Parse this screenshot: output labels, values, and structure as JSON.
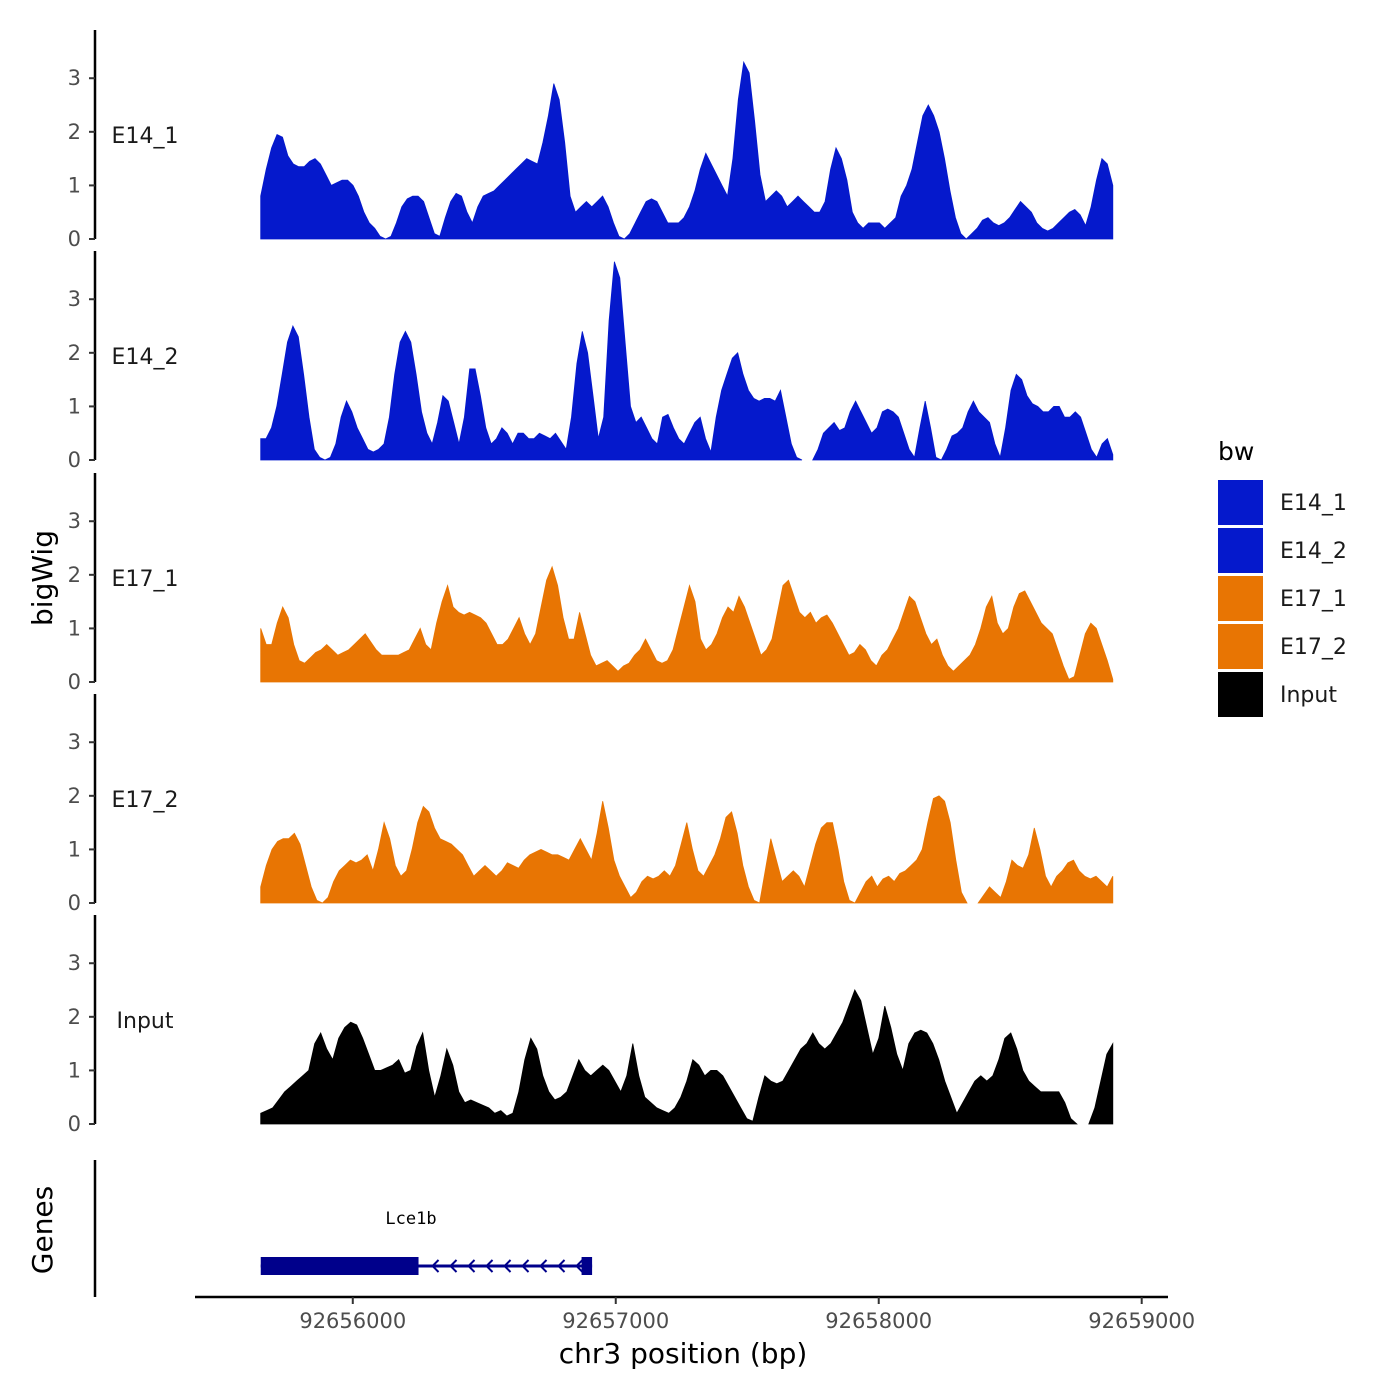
{
  "chart_data": {
    "type": "area",
    "y_axis_title": "bigWig",
    "x_axis_title": "chr3 position (bp)",
    "ylim": [
      0,
      3.9
    ],
    "y_ticks": [
      "0",
      "1",
      "2",
      "3"
    ],
    "x_ticks": [
      {
        "value": 92656000,
        "label": "92656000"
      },
      {
        "value": 92657000,
        "label": "92657000"
      },
      {
        "value": 92658000,
        "label": "92658000"
      },
      {
        "value": 92659000,
        "label": "92659000"
      }
    ],
    "xlim": [
      92655400,
      92659100
    ],
    "data_range": [
      92655650,
      92658890
    ],
    "tracks": [
      {
        "name": "E14_1",
        "color": "#0519CC",
        "values": [
          0.8,
          1.3,
          1.7,
          1.95,
          1.9,
          1.55,
          1.4,
          1.35,
          1.35,
          1.45,
          1.5,
          1.4,
          1.2,
          1.0,
          1.05,
          1.1,
          1.1,
          1.0,
          0.8,
          0.5,
          0.3,
          0.2,
          0.05,
          0,
          0.05,
          0.3,
          0.6,
          0.75,
          0.8,
          0.8,
          0.7,
          0.4,
          0.1,
          0.05,
          0.4,
          0.7,
          0.85,
          0.8,
          0.5,
          0.3,
          0.6,
          0.8,
          0.85,
          0.9,
          1.0,
          1.1,
          1.2,
          1.3,
          1.4,
          1.5,
          1.45,
          1.4,
          1.8,
          2.3,
          2.9,
          2.6,
          1.8,
          0.8,
          0.5,
          0.6,
          0.7,
          0.6,
          0.7,
          0.8,
          0.6,
          0.3,
          0.05,
          0,
          0.1,
          0.3,
          0.5,
          0.7,
          0.75,
          0.7,
          0.5,
          0.3,
          0.3,
          0.3,
          0.4,
          0.6,
          0.9,
          1.3,
          1.6,
          1.4,
          1.2,
          1.0,
          0.8,
          1.5,
          2.6,
          3.3,
          3.1,
          2.2,
          1.2,
          0.7,
          0.8,
          0.9,
          0.8,
          0.6,
          0.7,
          0.8,
          0.7,
          0.6,
          0.5,
          0.5,
          0.7,
          1.3,
          1.7,
          1.5,
          1.1,
          0.5,
          0.3,
          0.2,
          0.3,
          0.3,
          0.3,
          0.2,
          0.3,
          0.4,
          0.8,
          1.0,
          1.3,
          1.8,
          2.3,
          2.5,
          2.3,
          2.0,
          1.5,
          0.9,
          0.4,
          0.1,
          0,
          0.1,
          0.2,
          0.35,
          0.4,
          0.3,
          0.25,
          0.3,
          0.4,
          0.55,
          0.7,
          0.6,
          0.5,
          0.3,
          0.2,
          0.15,
          0.2,
          0.3,
          0.4,
          0.5,
          0.55,
          0.45,
          0.25,
          0.6,
          1.1,
          1.5,
          1.4,
          1.0
        ]
      },
      {
        "name": "E14_2",
        "color": "#0519CC",
        "values": [
          0.4,
          0.4,
          0.6,
          1.0,
          1.6,
          2.2,
          2.5,
          2.3,
          1.6,
          0.8,
          0.2,
          0.05,
          0,
          0.05,
          0.3,
          0.8,
          1.1,
          0.9,
          0.6,
          0.4,
          0.2,
          0.15,
          0.2,
          0.3,
          0.8,
          1.6,
          2.2,
          2.4,
          2.2,
          1.6,
          0.9,
          0.5,
          0.3,
          0.7,
          1.2,
          1.1,
          0.7,
          0.3,
          0.8,
          1.7,
          1.7,
          1.2,
          0.6,
          0.3,
          0.4,
          0.6,
          0.5,
          0.3,
          0.5,
          0.5,
          0.4,
          0.4,
          0.5,
          0.45,
          0.4,
          0.5,
          0.35,
          0.2,
          0.8,
          1.8,
          2.4,
          2.0,
          1.2,
          0.4,
          0.8,
          2.6,
          3.7,
          3.4,
          2.2,
          1.0,
          0.7,
          0.8,
          0.6,
          0.4,
          0.3,
          0.8,
          0.85,
          0.6,
          0.4,
          0.3,
          0.5,
          0.7,
          0.8,
          0.4,
          0.15,
          0.8,
          1.3,
          1.6,
          1.9,
          2.0,
          1.6,
          1.3,
          1.15,
          1.1,
          1.15,
          1.15,
          1.1,
          1.3,
          0.8,
          0.3,
          0.05,
          0,
          0,
          0,
          0.2,
          0.5,
          0.6,
          0.7,
          0.55,
          0.6,
          0.9,
          1.1,
          0.9,
          0.7,
          0.5,
          0.6,
          0.9,
          0.95,
          0.9,
          0.8,
          0.5,
          0.2,
          0.05,
          0.6,
          1.1,
          0.6,
          0.05,
          0,
          0.2,
          0.45,
          0.5,
          0.6,
          0.9,
          1.1,
          0.9,
          0.8,
          0.7,
          0.3,
          0.05,
          0.6,
          1.3,
          1.6,
          1.5,
          1.2,
          1.05,
          1.0,
          0.9,
          0.9,
          1.0,
          1.0,
          0.8,
          0.8,
          0.9,
          0.8,
          0.5,
          0.2,
          0.05,
          0.3,
          0.4,
          0.1
        ]
      },
      {
        "name": "E17_1",
        "color": "#E87503",
        "values": [
          1.0,
          0.7,
          0.7,
          1.1,
          1.4,
          1.2,
          0.7,
          0.4,
          0.35,
          0.45,
          0.55,
          0.6,
          0.7,
          0.6,
          0.5,
          0.55,
          0.6,
          0.7,
          0.8,
          0.9,
          0.75,
          0.6,
          0.5,
          0.5,
          0.5,
          0.5,
          0.55,
          0.6,
          0.8,
          1.0,
          0.7,
          0.6,
          1.1,
          1.5,
          1.8,
          1.4,
          1.3,
          1.25,
          1.3,
          1.25,
          1.2,
          1.1,
          0.9,
          0.7,
          0.7,
          0.8,
          1.0,
          1.2,
          0.9,
          0.7,
          0.9,
          1.4,
          1.9,
          2.15,
          1.8,
          1.2,
          0.8,
          0.8,
          1.3,
          0.9,
          0.5,
          0.3,
          0.35,
          0.4,
          0.3,
          0.2,
          0.3,
          0.35,
          0.5,
          0.6,
          0.8,
          0.6,
          0.4,
          0.35,
          0.4,
          0.6,
          1.0,
          1.4,
          1.8,
          1.5,
          0.8,
          0.6,
          0.7,
          0.9,
          1.2,
          1.4,
          1.3,
          1.6,
          1.4,
          1.1,
          0.8,
          0.5,
          0.6,
          0.8,
          1.3,
          1.8,
          1.9,
          1.6,
          1.3,
          1.2,
          1.3,
          1.1,
          1.2,
          1.25,
          1.1,
          0.9,
          0.7,
          0.5,
          0.55,
          0.7,
          0.6,
          0.4,
          0.3,
          0.5,
          0.6,
          0.8,
          1.0,
          1.3,
          1.6,
          1.5,
          1.2,
          0.9,
          0.7,
          0.8,
          0.5,
          0.3,
          0.2,
          0.3,
          0.4,
          0.5,
          0.7,
          1.0,
          1.4,
          1.6,
          1.1,
          0.9,
          1.0,
          1.4,
          1.65,
          1.7,
          1.5,
          1.3,
          1.1,
          1.0,
          0.9,
          0.6,
          0.3,
          0.05,
          0.1,
          0.5,
          0.9,
          1.1,
          1.0,
          0.7,
          0.4,
          0.05
        ]
      },
      {
        "name": "E17_2",
        "color": "#E87503",
        "values": [
          0.3,
          0.7,
          1.0,
          1.15,
          1.2,
          1.2,
          1.3,
          1.1,
          0.7,
          0.3,
          0.05,
          0,
          0.1,
          0.4,
          0.6,
          0.7,
          0.8,
          0.75,
          0.8,
          0.9,
          0.6,
          1.0,
          1.5,
          1.2,
          0.7,
          0.5,
          0.6,
          1.0,
          1.5,
          1.8,
          1.7,
          1.4,
          1.2,
          1.15,
          1.1,
          1.0,
          0.9,
          0.7,
          0.5,
          0.6,
          0.7,
          0.6,
          0.5,
          0.6,
          0.75,
          0.7,
          0.65,
          0.8,
          0.9,
          0.95,
          1.0,
          0.95,
          0.9,
          0.9,
          0.85,
          0.8,
          1.0,
          1.2,
          1.0,
          0.8,
          1.3,
          1.9,
          1.4,
          0.8,
          0.5,
          0.3,
          0.1,
          0.2,
          0.4,
          0.5,
          0.45,
          0.5,
          0.6,
          0.5,
          0.7,
          1.1,
          1.5,
          1.0,
          0.6,
          0.5,
          0.7,
          0.9,
          1.2,
          1.6,
          1.7,
          1.3,
          0.7,
          0.3,
          0.05,
          0,
          0.6,
          1.2,
          0.8,
          0.4,
          0.5,
          0.6,
          0.5,
          0.3,
          0.7,
          1.1,
          1.4,
          1.5,
          1.5,
          1.0,
          0.4,
          0.05,
          0,
          0.2,
          0.4,
          0.5,
          0.3,
          0.45,
          0.5,
          0.4,
          0.55,
          0.6,
          0.7,
          0.8,
          1.0,
          1.5,
          1.95,
          2.0,
          1.9,
          1.5,
          0.8,
          0.2,
          0,
          0,
          0,
          0.15,
          0.3,
          0.2,
          0.1,
          0.4,
          0.8,
          0.7,
          0.65,
          0.9,
          1.4,
          1.0,
          0.5,
          0.3,
          0.5,
          0.6,
          0.75,
          0.8,
          0.6,
          0.5,
          0.45,
          0.5,
          0.4,
          0.3,
          0.5
        ]
      },
      {
        "name": "Input",
        "color": "#000000",
        "values": [
          0.2,
          0.25,
          0.3,
          0.45,
          0.6,
          0.7,
          0.8,
          0.9,
          1.0,
          1.5,
          1.7,
          1.4,
          1.2,
          1.6,
          1.8,
          1.9,
          1.85,
          1.6,
          1.3,
          1.0,
          1.0,
          1.05,
          1.1,
          1.2,
          0.95,
          1.0,
          1.45,
          1.7,
          1.0,
          0.5,
          0.9,
          1.4,
          1.1,
          0.6,
          0.4,
          0.45,
          0.4,
          0.35,
          0.3,
          0.2,
          0.25,
          0.15,
          0.2,
          0.6,
          1.2,
          1.6,
          1.4,
          0.9,
          0.6,
          0.45,
          0.5,
          0.6,
          0.9,
          1.2,
          1.0,
          0.9,
          1.0,
          1.1,
          1.0,
          0.8,
          0.6,
          0.9,
          1.5,
          0.9,
          0.5,
          0.4,
          0.3,
          0.25,
          0.2,
          0.3,
          0.5,
          0.8,
          1.2,
          1.1,
          0.9,
          1.0,
          1.0,
          0.9,
          0.7,
          0.5,
          0.3,
          0.1,
          0.05,
          0.5,
          0.9,
          0.8,
          0.75,
          0.8,
          1.0,
          1.2,
          1.4,
          1.5,
          1.7,
          1.5,
          1.4,
          1.5,
          1.7,
          1.9,
          2.2,
          2.5,
          2.3,
          1.8,
          1.3,
          1.6,
          2.2,
          1.8,
          1.3,
          1.0,
          1.5,
          1.7,
          1.75,
          1.7,
          1.5,
          1.2,
          0.8,
          0.5,
          0.2,
          0.4,
          0.6,
          0.8,
          0.9,
          0.8,
          0.9,
          1.2,
          1.6,
          1.7,
          1.4,
          1.0,
          0.8,
          0.7,
          0.6,
          0.6,
          0.6,
          0.6,
          0.4,
          0.1,
          0,
          0,
          0,
          0.3,
          0.8,
          1.3,
          1.5
        ]
      }
    ],
    "gene_track_label": "Genes",
    "genes": [
      {
        "name": "Lce1b",
        "strand": "-",
        "start": 92655650,
        "end": 92656910,
        "thick_blocks": [
          [
            92655650,
            92656250
          ],
          [
            92656870,
            92656910
          ]
        ],
        "color": "#00008B"
      }
    ],
    "legend": {
      "title": "bw",
      "items": [
        {
          "label": "E14_1",
          "color": "#0519CC"
        },
        {
          "label": "E14_2",
          "color": "#0519CC"
        },
        {
          "label": "E17_1",
          "color": "#E87503"
        },
        {
          "label": "E17_2",
          "color": "#E87503"
        },
        {
          "label": "Input",
          "color": "#000000"
        }
      ]
    }
  }
}
